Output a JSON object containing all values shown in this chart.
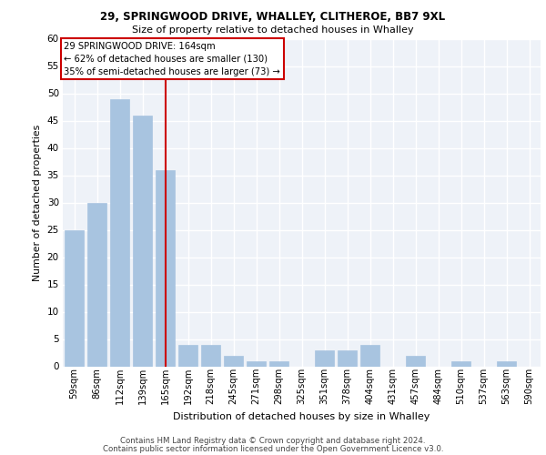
{
  "title_line1": "29, SPRINGWOOD DRIVE, WHALLEY, CLITHEROE, BB7 9XL",
  "title_line2": "Size of property relative to detached houses in Whalley",
  "xlabel": "Distribution of detached houses by size in Whalley",
  "ylabel": "Number of detached properties",
  "categories": [
    "59sqm",
    "86sqm",
    "112sqm",
    "139sqm",
    "165sqm",
    "192sqm",
    "218sqm",
    "245sqm",
    "271sqm",
    "298sqm",
    "325sqm",
    "351sqm",
    "378sqm",
    "404sqm",
    "431sqm",
    "457sqm",
    "484sqm",
    "510sqm",
    "537sqm",
    "563sqm",
    "590sqm"
  ],
  "values": [
    25,
    30,
    49,
    46,
    36,
    4,
    4,
    2,
    1,
    1,
    0,
    3,
    3,
    4,
    0,
    2,
    0,
    1,
    0,
    1,
    0
  ],
  "bar_color": "#a8c4e0",
  "bar_edgecolor": "#a8c4e0",
  "highlight_line_label": "29 SPRINGWOOD DRIVE: 164sqm",
  "annotation_line2": "← 62% of detached houses are smaller (130)",
  "annotation_line3": "35% of semi-detached houses are larger (73) →",
  "annotation_box_color": "#cc0000",
  "red_line_x": 4,
  "ylim": [
    0,
    60
  ],
  "yticks": [
    0,
    5,
    10,
    15,
    20,
    25,
    30,
    35,
    40,
    45,
    50,
    55,
    60
  ],
  "bg_color": "#eef2f8",
  "grid_color": "#ffffff",
  "footer_line1": "Contains HM Land Registry data © Crown copyright and database right 2024.",
  "footer_line2": "Contains public sector information licensed under the Open Government Licence v3.0."
}
